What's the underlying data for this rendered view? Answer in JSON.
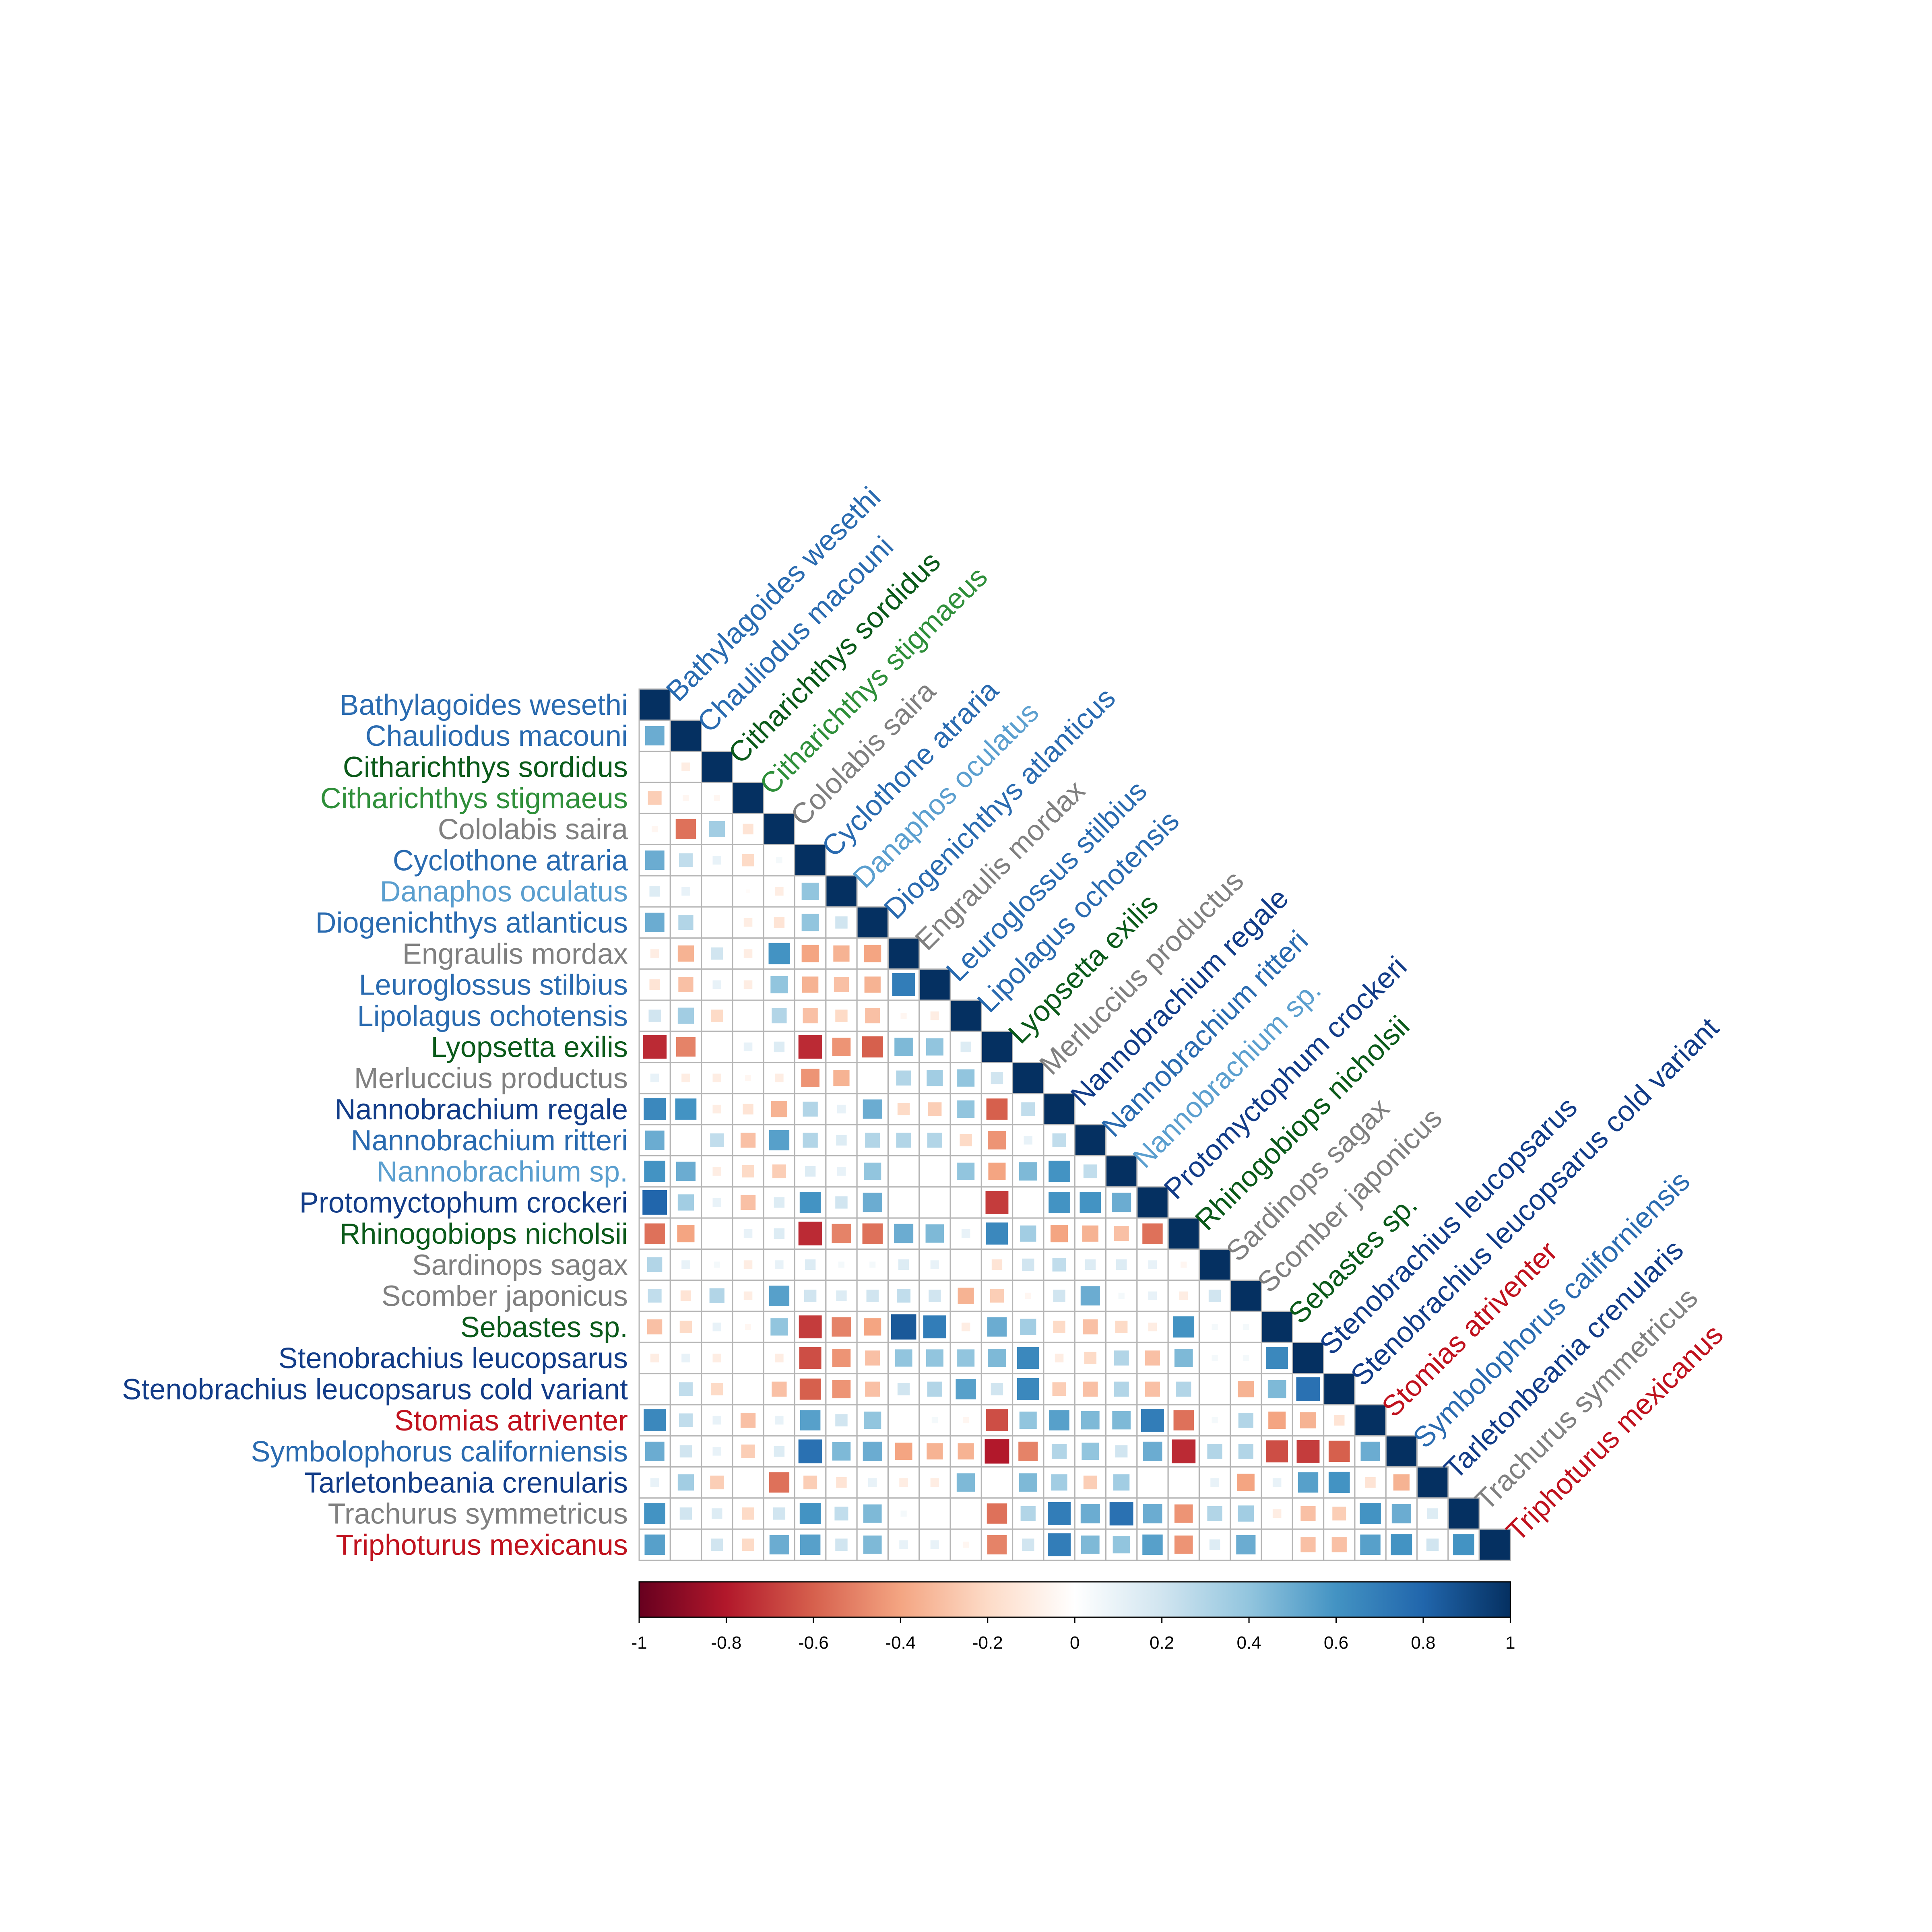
{
  "chart_data": {
    "type": "heatmap",
    "title": "",
    "lower_triangle": true,
    "cell_shape": "square sized by |r|",
    "labels": [
      "Bathylagoides wesethi",
      "Chauliodus macouni",
      "Citharichthys sordidus",
      "Citharichthys stigmaeus",
      "Cololabis saira",
      "Cyclothone atraria",
      "Danaphos oculatus",
      "Diogenichthys atlanticus",
      "Engraulis mordax",
      "Leuroglossus stilbius",
      "Lipolagus ochotensis",
      "Lyopsetta exilis",
      "Merluccius productus",
      "Nannobrachium regale",
      "Nannobrachium ritteri",
      "Nannobrachium sp.",
      "Protomyctophum crockeri",
      "Rhinogobiops nicholsii",
      "Sardinops sagax",
      "Scomber japonicus",
      "Sebastes sp.",
      "Stenobrachius leucopsarus",
      "Stenobrachius leucopsarus cold variant",
      "Stomias atriventer",
      "Symbolophorus californiensis",
      "Tarletonbeania crenularis",
      "Trachurus symmetricus",
      "Triphoturus mexicanus"
    ],
    "label_colors": [
      "#2a6bb0",
      "#2a6bb0",
      "#0b5a1a",
      "#2f8f3a",
      "#808080",
      "#2a6bb0",
      "#5b9fcf",
      "#2a6bb0",
      "#808080",
      "#2a6bb0",
      "#2a6bb0",
      "#0b5a1a",
      "#808080",
      "#123c88",
      "#2a6bb0",
      "#5b9fcf",
      "#123c88",
      "#0b5a1a",
      "#808080",
      "#808080",
      "#0b5a1a",
      "#123c88",
      "#123c88",
      "#c0121e",
      "#2a6bb0",
      "#123c88",
      "#808080",
      "#c0121e"
    ],
    "matrix": [
      [
        1
      ],
      [
        0.5,
        1
      ],
      [
        0,
        -0.1,
        1
      ],
      [
        -0.25,
        -0.05,
        -0.05,
        1
      ],
      [
        -0.05,
        -0.55,
        0.35,
        -0.15,
        1
      ],
      [
        0.5,
        0.25,
        0.1,
        -0.2,
        0.05,
        1
      ],
      [
        0.15,
        0.1,
        0,
        -0.02,
        -0.1,
        0.4,
        1
      ],
      [
        0.5,
        0.3,
        0,
        -0.1,
        -0.15,
        0.4,
        0.2,
        1
      ],
      [
        -0.1,
        -0.35,
        0.2,
        -0.1,
        0.6,
        -0.4,
        -0.35,
        -0.4,
        1
      ],
      [
        -0.15,
        -0.3,
        0.1,
        -0.1,
        0.4,
        -0.35,
        -0.3,
        -0.35,
        0.7,
        1
      ],
      [
        0.2,
        0.35,
        -0.2,
        0,
        0.3,
        -0.3,
        -0.2,
        -0.3,
        -0.05,
        -0.1,
        1
      ],
      [
        -0.75,
        -0.5,
        0,
        0.1,
        0.15,
        -0.75,
        -0.45,
        -0.6,
        0.45,
        0.4,
        0.15,
        1
      ],
      [
        0.1,
        -0.1,
        -0.1,
        -0.05,
        -0.1,
        -0.45,
        -0.35,
        0,
        0.3,
        0.35,
        0.4,
        0.2,
        1
      ],
      [
        0.65,
        0.6,
        -0.1,
        -0.15,
        -0.35,
        0.3,
        0.1,
        0.5,
        -0.2,
        -0.25,
        0.4,
        -0.6,
        0.25,
        1
      ],
      [
        0.5,
        0,
        0.25,
        -0.3,
        0.55,
        0.3,
        0.15,
        0.3,
        0.3,
        0.3,
        -0.2,
        -0.45,
        0.1,
        0.25,
        1
      ],
      [
        0.6,
        0.5,
        -0.1,
        -0.2,
        -0.25,
        0.15,
        0.1,
        0.4,
        0,
        0,
        0.4,
        -0.4,
        0.45,
        0.6,
        0.25,
        1
      ],
      [
        0.8,
        0.35,
        0.1,
        -0.3,
        0.15,
        0.6,
        0.2,
        0.5,
        0,
        0,
        0,
        -0.7,
        0,
        0.6,
        0.6,
        0.5,
        1
      ],
      [
        -0.55,
        -0.4,
        0,
        0.1,
        0.15,
        -0.75,
        -0.5,
        -0.55,
        0.5,
        0.45,
        0.1,
        0.65,
        0.35,
        -0.4,
        -0.35,
        -0.3,
        -0.55,
        1
      ],
      [
        0.3,
        0.1,
        0.05,
        -0.1,
        0.1,
        0.15,
        0.05,
        0.05,
        0.15,
        0.1,
        0,
        -0.15,
        0.2,
        0.25,
        0.15,
        0.15,
        0.1,
        -0.05,
        1
      ],
      [
        0.25,
        -0.15,
        0.3,
        -0.1,
        0.55,
        0.2,
        0.15,
        0.2,
        0.25,
        0.2,
        -0.35,
        -0.25,
        -0.05,
        0.2,
        0.5,
        0.05,
        0.1,
        -0.1,
        0.2,
        1
      ],
      [
        -0.3,
        -0.2,
        0.1,
        -0.05,
        0.4,
        -0.7,
        -0.5,
        -0.4,
        0.85,
        0.7,
        -0.1,
        0.5,
        0.35,
        -0.2,
        -0.3,
        -0.2,
        -0.1,
        0.6,
        0.05,
        0.05,
        1
      ],
      [
        -0.1,
        0.1,
        -0.1,
        0,
        -0.1,
        -0.65,
        -0.45,
        -0.3,
        0.4,
        0.4,
        0.4,
        0.45,
        0.65,
        -0.1,
        -0.2,
        0.3,
        -0.3,
        0.45,
        0.05,
        0.05,
        0.65,
        1
      ],
      [
        0,
        0.25,
        -0.2,
        0,
        -0.3,
        -0.6,
        -0.45,
        -0.3,
        0.2,
        0.3,
        0.55,
        0.2,
        0.65,
        -0.25,
        -0.3,
        0.3,
        -0.3,
        0.3,
        0,
        -0.35,
        0.45,
        0.75,
        1
      ],
      [
        0.65,
        0.25,
        0.1,
        -0.3,
        0.1,
        0.55,
        0.2,
        0.4,
        0,
        0.05,
        -0.05,
        -0.65,
        0.4,
        0.55,
        0.45,
        0.45,
        0.7,
        -0.55,
        0.05,
        0.3,
        -0.4,
        -0.35,
        -0.15,
        1
      ],
      [
        0.5,
        0.2,
        0.1,
        -0.25,
        0.15,
        0.75,
        0.45,
        0.5,
        -0.4,
        -0.35,
        -0.35,
        -0.8,
        -0.5,
        0.3,
        0.4,
        0.2,
        0.5,
        -0.75,
        0.3,
        0.3,
        -0.65,
        -0.7,
        -0.6,
        0.5,
        1
      ],
      [
        0.1,
        0.35,
        -0.25,
        0,
        -0.55,
        -0.25,
        -0.15,
        0.1,
        -0.1,
        -0.1,
        0.45,
        0,
        0.45,
        0.35,
        -0.25,
        0.35,
        0,
        0,
        0.1,
        -0.4,
        0.1,
        0.55,
        0.6,
        -0.15,
        -0.35,
        1
      ],
      [
        0.6,
        0.2,
        0.15,
        -0.2,
        0.2,
        0.6,
        0.25,
        0.45,
        0.05,
        0,
        0,
        -0.55,
        0.3,
        0.7,
        0.5,
        0.75,
        0.5,
        -0.45,
        0.3,
        0.35,
        -0.1,
        -0.3,
        -0.25,
        0.6,
        0.5,
        0.15,
        1
      ],
      [
        0.55,
        0,
        0.2,
        -0.2,
        0.5,
        0.55,
        0.2,
        0.45,
        0.1,
        0.1,
        -0.05,
        -0.5,
        0.2,
        0.7,
        0.45,
        0.4,
        0.55,
        -0.45,
        0.15,
        0.5,
        0,
        -0.3,
        -0.3,
        0.55,
        0.6,
        0.2,
        0.6,
        1
      ]
    ],
    "colorbar": {
      "range": [
        -1,
        1
      ],
      "tick_labels": [
        "-1",
        "-0.8",
        "-0.6",
        "-0.4",
        "-0.2",
        "0",
        "0.2",
        "0.4",
        "0.6",
        "0.8",
        "1"
      ],
      "tick_values": [
        -1,
        -0.8,
        -0.6,
        -0.4,
        -0.2,
        0,
        0.2,
        0.4,
        0.6,
        0.8,
        1
      ],
      "placement": "bottom",
      "colors": [
        "#67001f",
        "#b2182b",
        "#d6604d",
        "#f4a582",
        "#fddbc7",
        "#ffffff",
        "#d1e5f0",
        "#92c5de",
        "#4393c3",
        "#2166ac",
        "#053061"
      ]
    },
    "grid": true,
    "grid_color": "#b5b5b5"
  }
}
